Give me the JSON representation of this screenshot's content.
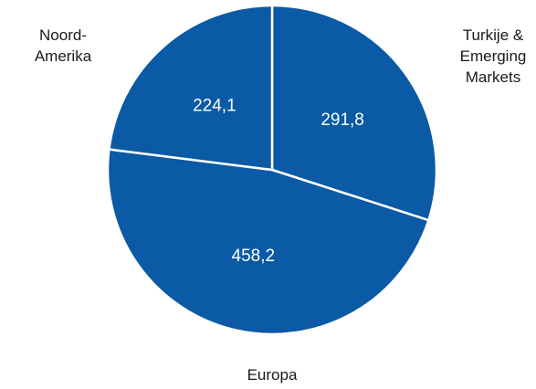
{
  "chart_data": {
    "type": "pie",
    "title": "",
    "categories": [
      "Turkije & Emerging Markets",
      "Europa",
      "Noord-Amerika"
    ],
    "category_label_lines": [
      [
        "Turkije &",
        "Emerging",
        "Markets"
      ],
      [
        "Europa"
      ],
      [
        "Noord-",
        "Amerika"
      ]
    ],
    "values": [
      291.8,
      458.2,
      224.1
    ],
    "value_labels": [
      "291,8",
      "458,2",
      "224,1"
    ],
    "start_angle_deg": 0,
    "direction": "clockwise",
    "colors": {
      "slice_fill": "#0a5aa5",
      "slice_border": "#ffffff",
      "value_text": "#ffffff",
      "category_text": "#1a1a1a"
    },
    "legend": "none"
  }
}
